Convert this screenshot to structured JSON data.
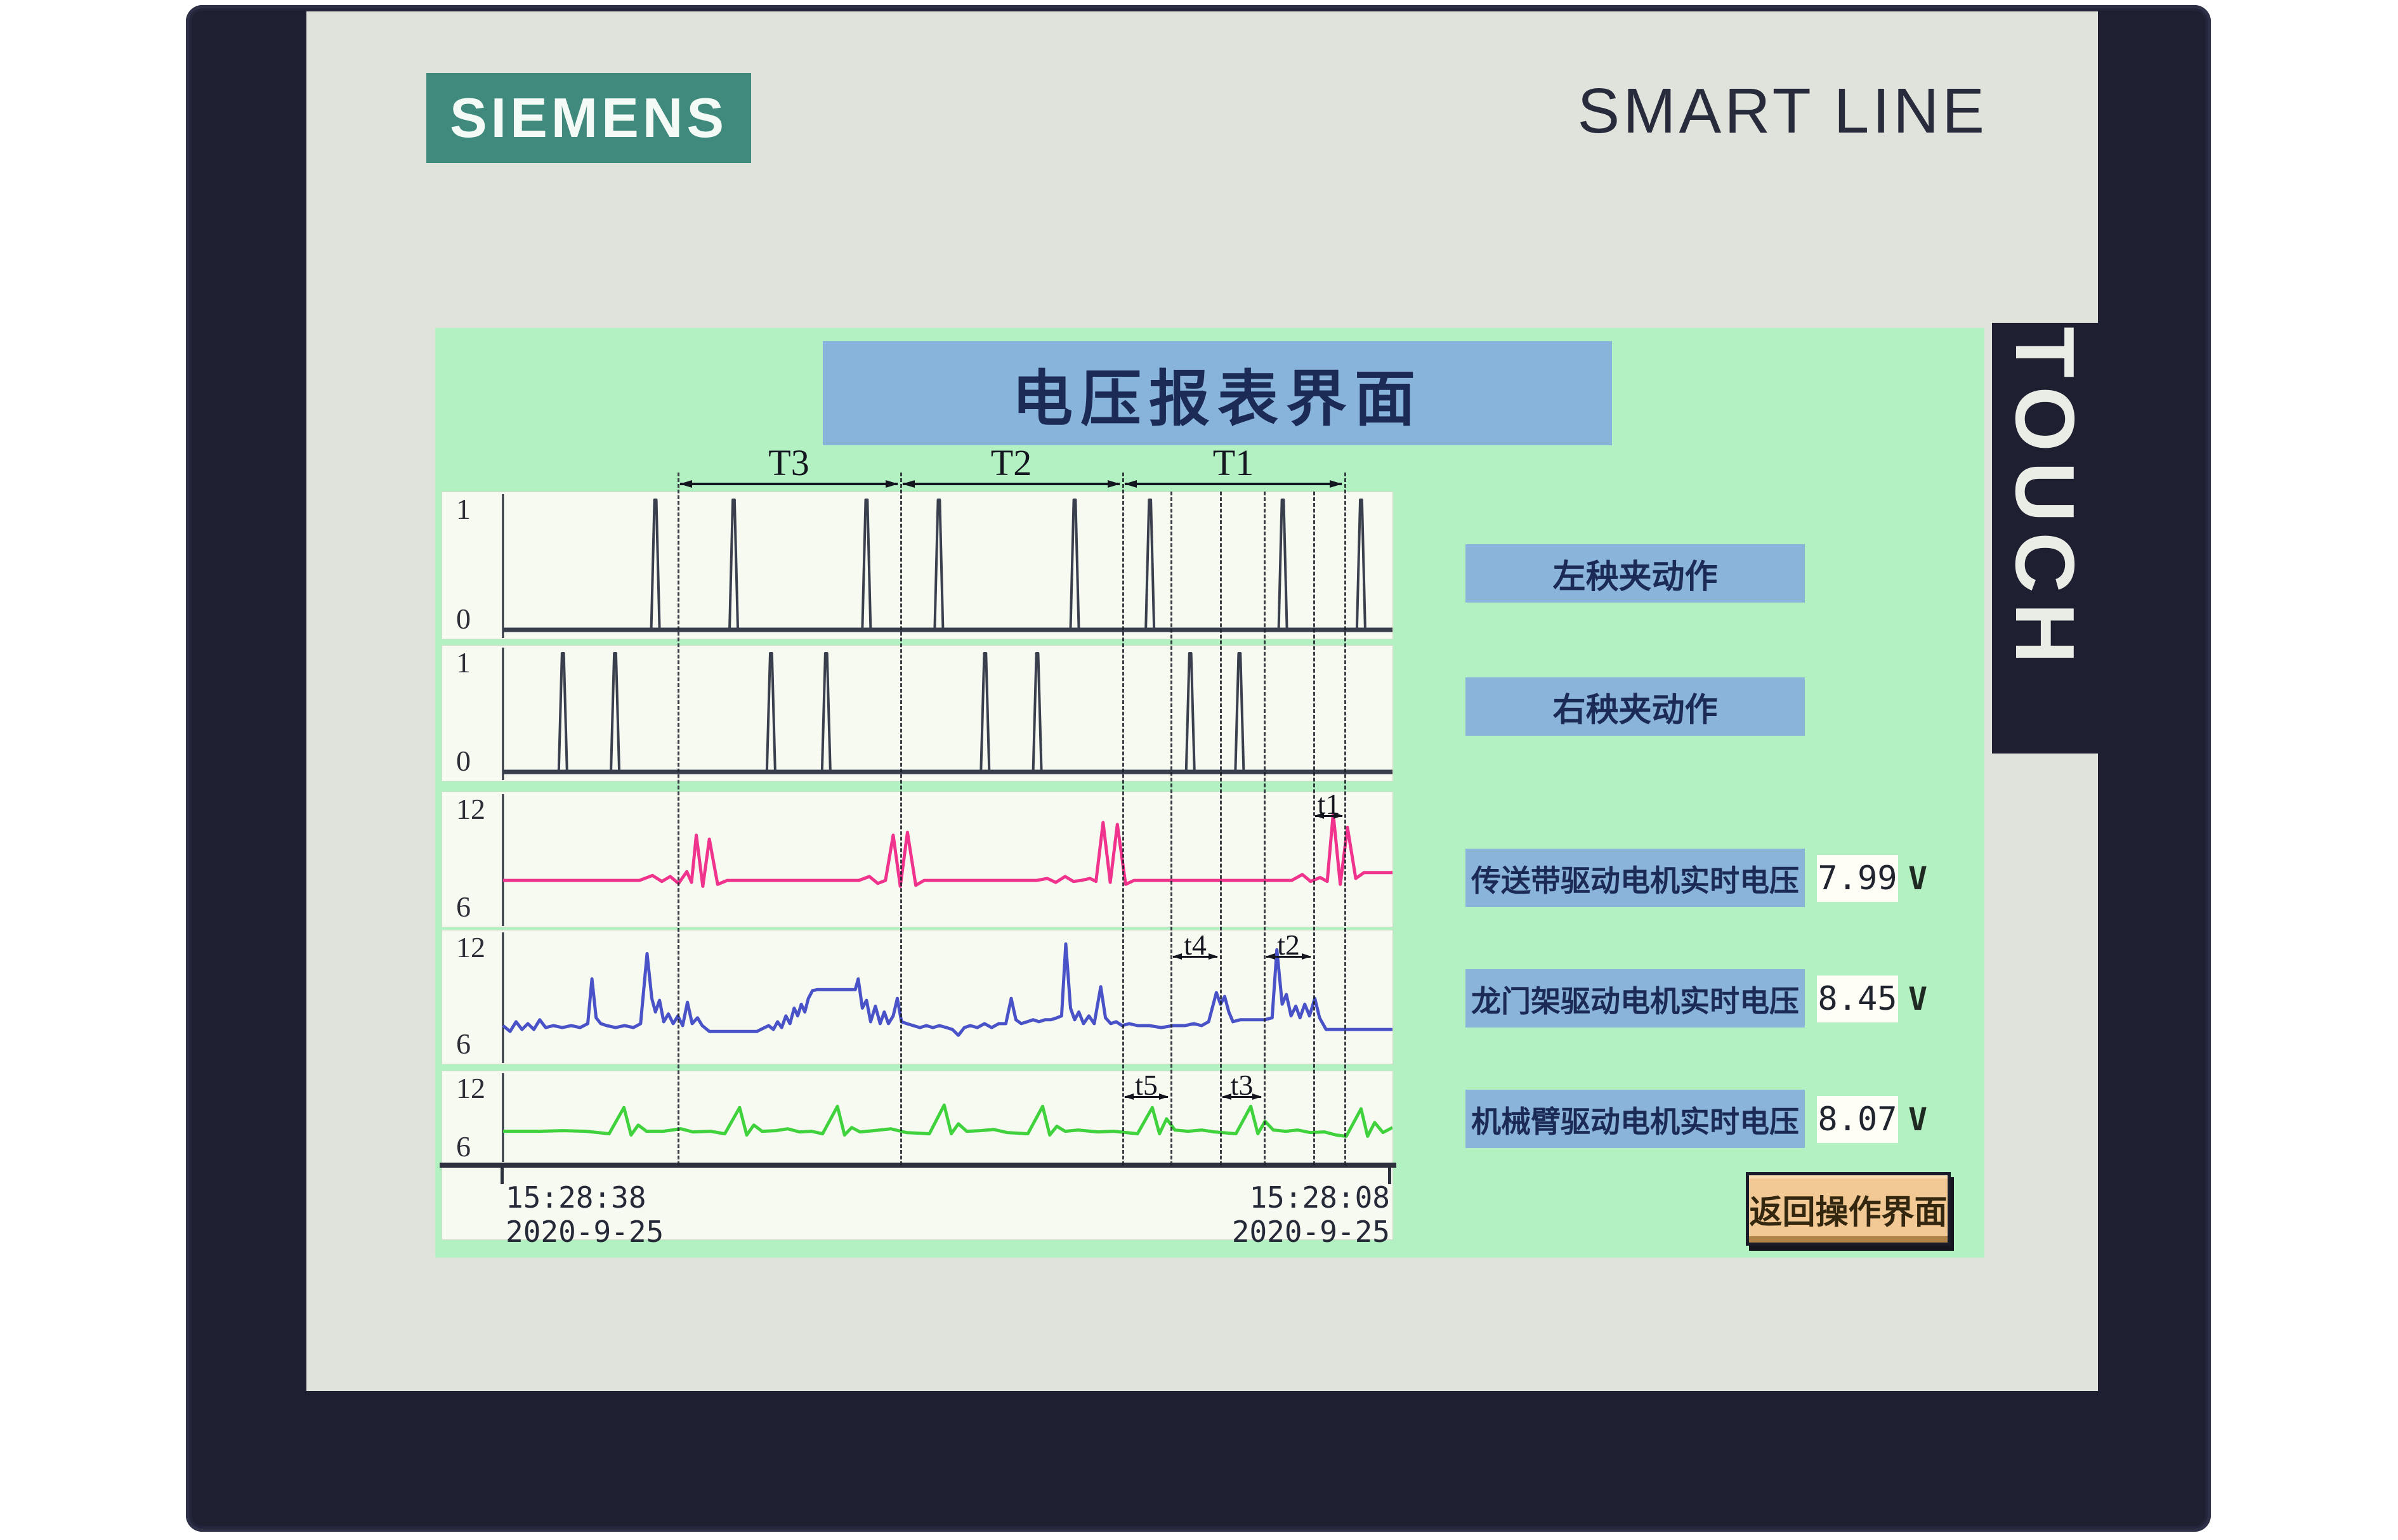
{
  "brand": {
    "logo": "SIEMENS",
    "product_line": "SMART LINE",
    "touch": "TOUCH"
  },
  "title_bar": {
    "text": "电压报表界面"
  },
  "time_spans": {
    "T3": "T3",
    "T2": "T2",
    "T1": "T1"
  },
  "sub_spans": {
    "t1": "t1",
    "t2": "t2",
    "t3": "t3",
    "t4": "t4",
    "t5": "t5"
  },
  "digital_actions": [
    {
      "label": "左秧夹动作"
    },
    {
      "label": "右秧夹动作"
    }
  ],
  "voltage_rows": [
    {
      "label": "传送带驱动电机实时电压",
      "value": "7.99",
      "unit": "V"
    },
    {
      "label": "龙门架驱动电机实时电压",
      "value": "8.45",
      "unit": "V"
    },
    {
      "label": "机械臂驱动电机实时电压",
      "value": "8.07",
      "unit": "V"
    }
  ],
  "x_axis": {
    "left_time": "15:28:38",
    "left_date": "2020-9-25",
    "right_time": "15:28:08",
    "right_date": "2020-9-25"
  },
  "return_button": {
    "label": "返回操作界面"
  },
  "colors": {
    "bezel": "#1e2032",
    "screen_gray": "#e0e3dc",
    "panel_green": "#b3f0c2",
    "accent_blue": "#8ab4da",
    "title_text": "#1b2b56",
    "siemens_teal": "#3f8a7d",
    "trace_pink": "#f0338c",
    "trace_blue": "#4a52c8",
    "trace_green": "#3fd23c",
    "trace_digital": "#3a3f4e",
    "button_tan": "#f2c894"
  },
  "chart_data": [
    {
      "type": "digital",
      "name": "left-clamp-signal",
      "y_top_label": "1",
      "y_bottom_label": "0",
      "ymin": 0,
      "ymax": 1,
      "color": "#3a3f4e",
      "pulses": [
        257,
        389,
        613,
        735,
        964,
        1091,
        1315,
        1447
      ]
    },
    {
      "type": "digital",
      "name": "right-clamp-signal",
      "y_top_label": "1",
      "y_bottom_label": "0",
      "ymin": 0,
      "ymax": 1,
      "color": "#3a3f4e",
      "pulses": [
        101,
        189,
        452,
        545,
        813,
        901,
        1159,
        1242
      ]
    },
    {
      "type": "analog",
      "name": "conveyor-motor-voltage",
      "y_top_label": "12",
      "y_bottom_label": "6",
      "ymin": 6,
      "ymax": 12,
      "color": "#f0338c",
      "points": [
        [
          0,
          7.9
        ],
        [
          230,
          7.9
        ],
        [
          252,
          8.15
        ],
        [
          268,
          7.85
        ],
        [
          282,
          8.1
        ],
        [
          296,
          7.75
        ],
        [
          310,
          8.35
        ],
        [
          318,
          7.8
        ],
        [
          326,
          10.2
        ],
        [
          337,
          7.6
        ],
        [
          348,
          10.0
        ],
        [
          362,
          7.7
        ],
        [
          378,
          7.9
        ],
        [
          600,
          7.9
        ],
        [
          618,
          8.1
        ],
        [
          632,
          7.75
        ],
        [
          645,
          7.9
        ],
        [
          658,
          10.2
        ],
        [
          670,
          7.6
        ],
        [
          682,
          10.35
        ],
        [
          696,
          7.65
        ],
        [
          710,
          7.9
        ],
        [
          900,
          7.9
        ],
        [
          918,
          8.0
        ],
        [
          932,
          7.8
        ],
        [
          948,
          8.1
        ],
        [
          962,
          7.85
        ],
        [
          975,
          7.9
        ],
        [
          990,
          8.0
        ],
        [
          1000,
          7.85
        ],
        [
          1012,
          10.85
        ],
        [
          1024,
          7.8
        ],
        [
          1036,
          10.75
        ],
        [
          1050,
          7.7
        ],
        [
          1064,
          7.9
        ],
        [
          1330,
          7.9
        ],
        [
          1348,
          8.2
        ],
        [
          1362,
          7.85
        ],
        [
          1378,
          8.05
        ],
        [
          1390,
          7.85
        ],
        [
          1400,
          11.3
        ],
        [
          1412,
          7.7
        ],
        [
          1424,
          10.6
        ],
        [
          1438,
          8.0
        ],
        [
          1452,
          8.3
        ],
        [
          1500,
          8.3
        ]
      ]
    },
    {
      "type": "analog",
      "name": "gantry-motor-voltage",
      "y_top_label": "12",
      "y_bottom_label": "6",
      "ymin": 6,
      "ymax": 12,
      "color": "#4a52c8",
      "points": [
        [
          0,
          7.5
        ],
        [
          12,
          7.2
        ],
        [
          22,
          7.7
        ],
        [
          32,
          7.3
        ],
        [
          42,
          7.6
        ],
        [
          52,
          7.3
        ],
        [
          62,
          7.8
        ],
        [
          72,
          7.4
        ],
        [
          85,
          7.5
        ],
        [
          100,
          7.4
        ],
        [
          115,
          7.5
        ],
        [
          130,
          7.4
        ],
        [
          143,
          7.6
        ],
        [
          150,
          9.9
        ],
        [
          157,
          7.9
        ],
        [
          165,
          7.6
        ],
        [
          175,
          7.5
        ],
        [
          190,
          7.4
        ],
        [
          205,
          7.5
        ],
        [
          220,
          7.4
        ],
        [
          232,
          7.6
        ],
        [
          243,
          11.2
        ],
        [
          251,
          8.9
        ],
        [
          257,
          8.2
        ],
        [
          264,
          8.8
        ],
        [
          271,
          7.7
        ],
        [
          279,
          8.1
        ],
        [
          287,
          7.6
        ],
        [
          295,
          8.0
        ],
        [
          303,
          7.5
        ],
        [
          311,
          8.7
        ],
        [
          319,
          7.6
        ],
        [
          328,
          7.9
        ],
        [
          336,
          7.5
        ],
        [
          348,
          7.2
        ],
        [
          368,
          7.2
        ],
        [
          388,
          7.2
        ],
        [
          408,
          7.2
        ],
        [
          428,
          7.2
        ],
        [
          448,
          7.5
        ],
        [
          456,
          7.3
        ],
        [
          463,
          7.7
        ],
        [
          470,
          7.4
        ],
        [
          477,
          8.0
        ],
        [
          484,
          7.6
        ],
        [
          491,
          8.4
        ],
        [
          497,
          8.0
        ],
        [
          503,
          8.6
        ],
        [
          509,
          8.2
        ],
        [
          515,
          8.9
        ],
        [
          522,
          9.3
        ],
        [
          530,
          9.35
        ],
        [
          594,
          9.35
        ],
        [
          599,
          9.9
        ],
        [
          606,
          8.4
        ],
        [
          613,
          8.8
        ],
        [
          620,
          7.7
        ],
        [
          628,
          8.5
        ],
        [
          636,
          7.6
        ],
        [
          643,
          8.2
        ],
        [
          650,
          7.6
        ],
        [
          658,
          8.0
        ],
        [
          665,
          8.9
        ],
        [
          672,
          7.7
        ],
        [
          681,
          7.6
        ],
        [
          692,
          7.5
        ],
        [
          703,
          7.4
        ],
        [
          714,
          7.5
        ],
        [
          725,
          7.4
        ],
        [
          736,
          7.5
        ],
        [
          748,
          7.4
        ],
        [
          758,
          7.3
        ],
        [
          768,
          7.0
        ],
        [
          778,
          7.4
        ],
        [
          788,
          7.5
        ],
        [
          800,
          7.4
        ],
        [
          812,
          7.6
        ],
        [
          824,
          7.4
        ],
        [
          836,
          7.6
        ],
        [
          848,
          7.6
        ],
        [
          857,
          8.9
        ],
        [
          865,
          7.8
        ],
        [
          874,
          7.6
        ],
        [
          884,
          7.7
        ],
        [
          894,
          7.8
        ],
        [
          904,
          7.7
        ],
        [
          914,
          7.8
        ],
        [
          924,
          7.8
        ],
        [
          934,
          7.9
        ],
        [
          942,
          8.0
        ],
        [
          949,
          11.7
        ],
        [
          957,
          8.4
        ],
        [
          964,
          7.8
        ],
        [
          971,
          8.2
        ],
        [
          979,
          7.6
        ],
        [
          988,
          8.0
        ],
        [
          997,
          7.6
        ],
        [
          1008,
          9.5
        ],
        [
          1016,
          7.9
        ],
        [
          1025,
          7.6
        ],
        [
          1034,
          7.7
        ],
        [
          1044,
          7.5
        ],
        [
          1056,
          7.6
        ],
        [
          1070,
          7.5
        ],
        [
          1090,
          7.5
        ],
        [
          1110,
          7.4
        ],
        [
          1130,
          7.5
        ],
        [
          1150,
          7.5
        ],
        [
          1165,
          7.6
        ],
        [
          1178,
          7.5
        ],
        [
          1190,
          7.7
        ],
        [
          1203,
          9.2
        ],
        [
          1210,
          8.6
        ],
        [
          1217,
          9.0
        ],
        [
          1224,
          8.2
        ],
        [
          1231,
          7.7
        ],
        [
          1243,
          7.8
        ],
        [
          1256,
          7.8
        ],
        [
          1270,
          7.8
        ],
        [
          1284,
          7.8
        ],
        [
          1297,
          7.9
        ],
        [
          1305,
          11.4
        ],
        [
          1314,
          8.6
        ],
        [
          1321,
          9.1
        ],
        [
          1329,
          8.0
        ],
        [
          1337,
          8.5
        ],
        [
          1344,
          7.9
        ],
        [
          1352,
          8.6
        ],
        [
          1360,
          8.0
        ],
        [
          1369,
          8.9
        ],
        [
          1377,
          7.9
        ],
        [
          1388,
          7.3
        ],
        [
          1410,
          7.3
        ],
        [
          1440,
          7.3
        ],
        [
          1470,
          7.3
        ],
        [
          1500,
          7.3
        ]
      ]
    },
    {
      "type": "analog",
      "name": "arm-motor-voltage",
      "y_top_label": "12",
      "y_bottom_label": "6",
      "ymin": 6,
      "ymax": 12,
      "color": "#3fd23c",
      "points": [
        [
          0,
          7.8
        ],
        [
          60,
          7.8
        ],
        [
          100,
          7.85
        ],
        [
          140,
          7.8
        ],
        [
          179,
          7.6
        ],
        [
          204,
          9.7
        ],
        [
          216,
          7.5
        ],
        [
          228,
          8.3
        ],
        [
          242,
          7.8
        ],
        [
          270,
          7.8
        ],
        [
          300,
          8.0
        ],
        [
          320,
          7.75
        ],
        [
          350,
          7.8
        ],
        [
          374,
          7.6
        ],
        [
          399,
          9.7
        ],
        [
          411,
          7.5
        ],
        [
          423,
          8.3
        ],
        [
          437,
          7.8
        ],
        [
          460,
          7.85
        ],
        [
          480,
          8.0
        ],
        [
          500,
          7.75
        ],
        [
          520,
          7.8
        ],
        [
          539,
          7.6
        ],
        [
          564,
          9.8
        ],
        [
          576,
          7.5
        ],
        [
          588,
          8.1
        ],
        [
          602,
          7.75
        ],
        [
          625,
          7.85
        ],
        [
          654,
          8.0
        ],
        [
          680,
          7.7
        ],
        [
          719,
          7.6
        ],
        [
          744,
          9.9
        ],
        [
          756,
          7.6
        ],
        [
          768,
          8.4
        ],
        [
          782,
          7.8
        ],
        [
          805,
          7.85
        ],
        [
          827,
          7.95
        ],
        [
          850,
          7.7
        ],
        [
          885,
          7.6
        ],
        [
          910,
          9.8
        ],
        [
          922,
          7.5
        ],
        [
          934,
          8.2
        ],
        [
          948,
          7.8
        ],
        [
          970,
          7.9
        ],
        [
          1003,
          7.75
        ],
        [
          1030,
          7.8
        ],
        [
          1070,
          7.6
        ],
        [
          1095,
          9.7
        ],
        [
          1107,
          7.6
        ],
        [
          1119,
          8.8
        ],
        [
          1133,
          7.9
        ],
        [
          1155,
          7.8
        ],
        [
          1178,
          7.9
        ],
        [
          1200,
          7.75
        ],
        [
          1236,
          7.6
        ],
        [
          1261,
          9.8
        ],
        [
          1273,
          7.6
        ],
        [
          1285,
          8.6
        ],
        [
          1299,
          7.9
        ],
        [
          1320,
          7.8
        ],
        [
          1340,
          7.9
        ],
        [
          1361,
          7.7
        ],
        [
          1385,
          7.75
        ],
        [
          1405,
          7.5
        ],
        [
          1422,
          7.4
        ],
        [
          1447,
          9.6
        ],
        [
          1458,
          7.4
        ],
        [
          1470,
          8.5
        ],
        [
          1484,
          7.7
        ],
        [
          1500,
          8.1
        ]
      ]
    }
  ]
}
